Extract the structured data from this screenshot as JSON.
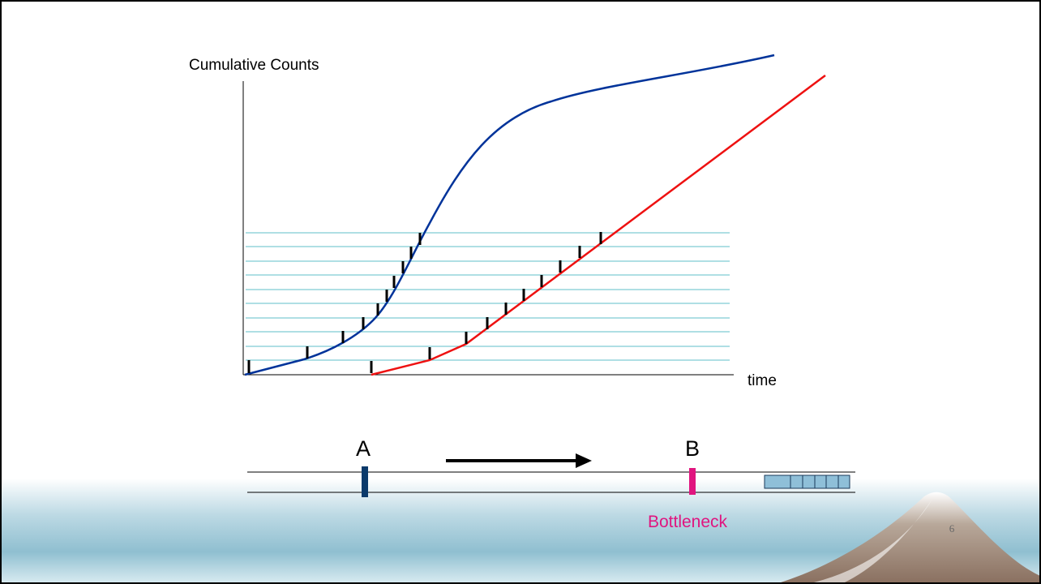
{
  "axis": {
    "y_label": "Cumulative Counts",
    "x_label": "time"
  },
  "road": {
    "point_a": "A",
    "point_b": "B",
    "bottleneck": "Bottleneck"
  },
  "footer": {
    "page_number": "6"
  }
}
